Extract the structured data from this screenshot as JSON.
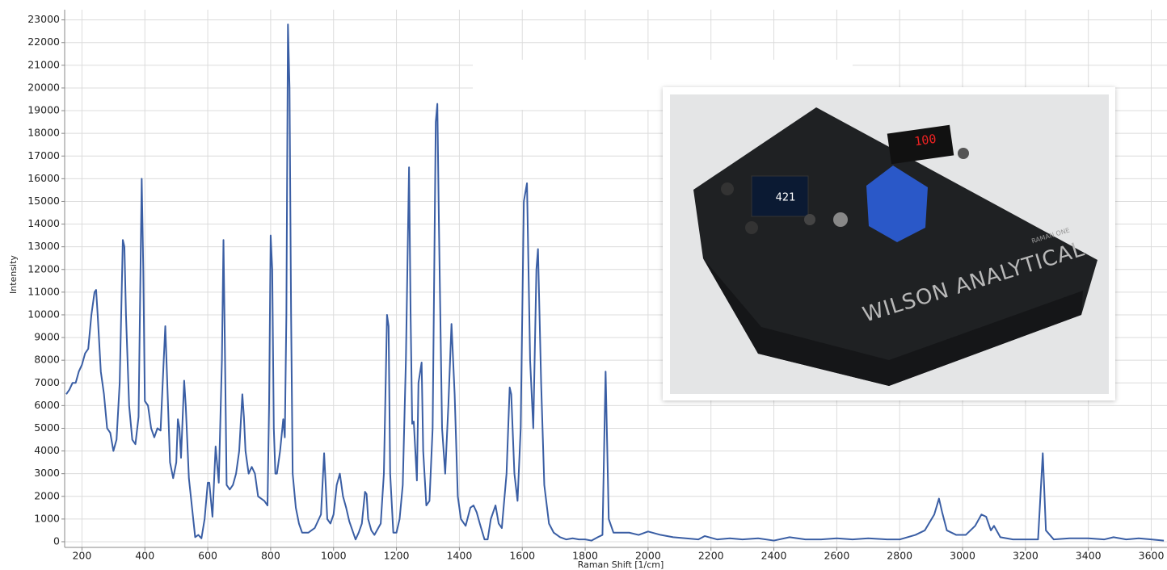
{
  "chart_data": {
    "type": "line",
    "x_label": "Raman Shift [1/cm]",
    "y_label": "Intensity",
    "color": "#3a5ea4",
    "grid": true,
    "xlim": [
      145,
      3650
    ],
    "ylim": [
      -250,
      23450
    ],
    "xticks": [
      200,
      400,
      600,
      800,
      1000,
      1200,
      1400,
      1600,
      1800,
      2000,
      2200,
      2400,
      2600,
      2800,
      3000,
      3200,
      3400,
      3600
    ],
    "yticks": [
      0,
      1000,
      2000,
      3000,
      4000,
      5000,
      6000,
      7000,
      8000,
      9000,
      10000,
      11000,
      12000,
      13000,
      14000,
      15000,
      16000,
      17000,
      18000,
      19000,
      20000,
      21000,
      22000,
      23000
    ],
    "x": [
      150,
      160,
      170,
      180,
      190,
      200,
      210,
      220,
      230,
      240,
      245,
      250,
      260,
      270,
      280,
      290,
      300,
      310,
      320,
      330,
      335,
      340,
      350,
      360,
      370,
      380,
      390,
      395,
      400,
      410,
      420,
      430,
      440,
      450,
      460,
      465,
      470,
      480,
      490,
      500,
      505,
      510,
      515,
      525,
      530,
      540,
      550,
      560,
      570,
      580,
      590,
      600,
      605,
      615,
      625,
      635,
      645,
      650,
      655,
      660,
      670,
      680,
      690,
      700,
      710,
      715,
      720,
      730,
      740,
      750,
      760,
      780,
      790,
      795,
      800,
      805,
      810,
      815,
      820,
      830,
      840,
      845,
      850,
      855,
      860,
      865,
      870,
      880,
      890,
      900,
      920,
      940,
      960,
      970,
      975,
      980,
      990,
      1000,
      1010,
      1020,
      1030,
      1040,
      1050,
      1060,
      1070,
      1080,
      1090,
      1100,
      1105,
      1110,
      1120,
      1130,
      1150,
      1160,
      1170,
      1175,
      1180,
      1190,
      1200,
      1210,
      1220,
      1230,
      1240,
      1245,
      1250,
      1255,
      1260,
      1265,
      1270,
      1280,
      1285,
      1295,
      1305,
      1315,
      1325,
      1330,
      1335,
      1345,
      1355,
      1365,
      1375,
      1385,
      1395,
      1405,
      1420,
      1435,
      1445,
      1455,
      1465,
      1480,
      1490,
      1500,
      1515,
      1525,
      1535,
      1550,
      1560,
      1565,
      1575,
      1585,
      1595,
      1605,
      1615,
      1625,
      1635,
      1645,
      1650,
      1660,
      1670,
      1685,
      1700,
      1720,
      1740,
      1760,
      1780,
      1800,
      1820,
      1840,
      1855,
      1865,
      1875,
      1890,
      1910,
      1940,
      1970,
      2000,
      2040,
      2080,
      2120,
      2160,
      2180,
      2220,
      2260,
      2300,
      2350,
      2400,
      2450,
      2500,
      2550,
      2600,
      2650,
      2700,
      2760,
      2800,
      2850,
      2880,
      2910,
      2925,
      2935,
      2950,
      2980,
      3010,
      3040,
      3060,
      3075,
      3090,
      3100,
      3120,
      3160,
      3200,
      3240,
      3255,
      3265,
      3290,
      3340,
      3400,
      3450,
      3480,
      3520,
      3560,
      3600,
      3640
    ],
    "values": [
      6500,
      6700,
      7000,
      7000,
      7500,
      7800,
      8300,
      8500,
      10000,
      11000,
      11100,
      10000,
      7500,
      6500,
      5000,
      4800,
      4000,
      4500,
      7000,
      13300,
      13000,
      10000,
      6000,
      4500,
      4300,
      5500,
      16000,
      12000,
      6200,
      6000,
      5000,
      4600,
      5000,
      4900,
      8000,
      9500,
      7500,
      3500,
      2800,
      3500,
      5400,
      5000,
      3700,
      7100,
      6000,
      2800,
      1500,
      200,
      300,
      150,
      1000,
      2600,
      2600,
      1100,
      4200,
      2600,
      8000,
      13300,
      8000,
      2500,
      2300,
      2500,
      3000,
      4000,
      6500,
      5500,
      4000,
      3000,
      3300,
      3000,
      2000,
      1800,
      1600,
      6000,
      13500,
      12000,
      5000,
      3000,
      3000,
      4000,
      5400,
      4600,
      10000,
      22800,
      20000,
      10000,
      3000,
      1500,
      800,
      400,
      400,
      600,
      1200,
      3900,
      2500,
      1000,
      800,
      1200,
      2500,
      3000,
      2000,
      1500,
      900,
      500,
      100,
      400,
      800,
      2200,
      2100,
      1000,
      500,
      300,
      800,
      3000,
      10000,
      9500,
      3000,
      400,
      400,
      1000,
      2500,
      8000,
      16500,
      10000,
      5200,
      5300,
      4000,
      2700,
      7000,
      7900,
      4000,
      1600,
      1800,
      5000,
      18500,
      19300,
      14000,
      5000,
      3000,
      6000,
      9600,
      6500,
      2000,
      1000,
      700,
      1500,
      1600,
      1300,
      800,
      100,
      100,
      1000,
      1600,
      800,
      600,
      3000,
      6800,
      6500,
      3000,
      1800,
      5000,
      15000,
      15800,
      8000,
      5000,
      12000,
      12900,
      7000,
      2500,
      800,
      400,
      200,
      100,
      150,
      100,
      100,
      50,
      200,
      300,
      7500,
      1000,
      400,
      400,
      400,
      300,
      450,
      300,
      200,
      150,
      100,
      250,
      100,
      150,
      100,
      150,
      50,
      200,
      100,
      100,
      150,
      100,
      150,
      100,
      100,
      300,
      500,
      1200,
      1900,
      1300,
      500,
      300,
      300,
      700,
      1200,
      1100,
      500,
      700,
      200,
      100,
      100,
      100,
      3900,
      500,
      100,
      150,
      150,
      100,
      200,
      100,
      150,
      100,
      50
    ],
    "annotations": [
      "WILSON ANALYTICAL",
      "RAMAN ONE",
      "100",
      "421"
    ]
  }
}
